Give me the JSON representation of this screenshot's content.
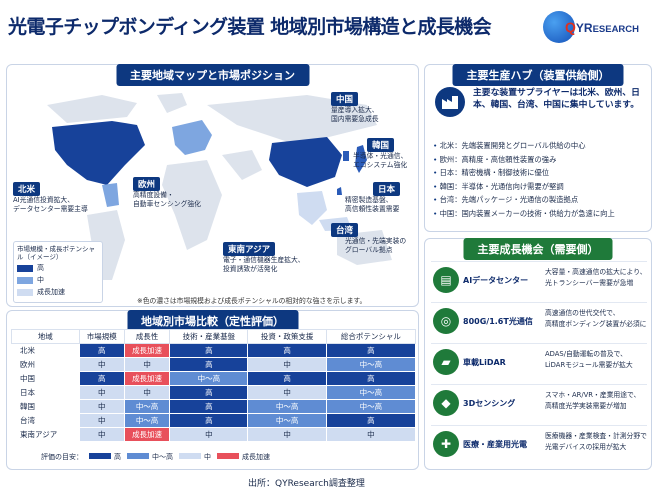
{
  "title": "光電子チップボンディング装置 地域別市場構造と成長機会",
  "logo": {
    "text_q": "Q",
    "text_rest": "YR",
    "text_small": "ESEARCH"
  },
  "map": {
    "header": "主要地域マップと市場ポジション",
    "regions": [
      {
        "name": "北米",
        "desc": [
          "AI光通信投資拡大、",
          "データセンター需要主導"
        ]
      },
      {
        "name": "欧州",
        "desc": [
          "高精度設備・",
          "自動車センシング強化"
        ]
      },
      {
        "name": "中国",
        "desc": [
          "量産導入拡大、",
          "国内需要急成長"
        ]
      },
      {
        "name": "韓国",
        "desc": [
          "半導体・光通信、",
          "エコシステム強化"
        ]
      },
      {
        "name": "日本",
        "desc": [
          "精密製造基盤、",
          "高信頼性装置需要"
        ]
      },
      {
        "name": "台湾",
        "desc": [
          "光通信・先端実装の",
          "グローバル拠点"
        ]
      },
      {
        "name": "東南アジア",
        "desc": [
          "電子・通信機器生産拡大、",
          "投資誘致が活発化"
        ]
      }
    ],
    "legend": {
      "title": "市場規模・成長ポテンシャル（イメージ）",
      "items": [
        "高",
        "中",
        "成長加速"
      ]
    },
    "note": "※色の濃さは市場規模および成長ポテンシャルの相対的な強さを示します。",
    "colors": {
      "high": "#17429a",
      "mid": "#7ea6e0",
      "low": "#cfdcf1",
      "grey": "#dde3ec"
    }
  },
  "table": {
    "header": "地域別市場比較（定性評価）",
    "columns": [
      "地域",
      "市場規模",
      "成長性",
      "技術・産業基盤",
      "投資・政策支援",
      "総合ポテンシャル"
    ],
    "rows": [
      {
        "cells": [
          "北米",
          "高",
          "成長加速",
          "高",
          "高",
          "高"
        ],
        "cls": [
          "rn",
          "hi",
          "gr",
          "hi",
          "hi",
          "hi"
        ]
      },
      {
        "cells": [
          "欧州",
          "中",
          "中",
          "高",
          "中",
          "中～高"
        ],
        "cls": [
          "rn",
          "md",
          "md",
          "hi",
          "md",
          "mh"
        ]
      },
      {
        "cells": [
          "中国",
          "高",
          "成長加速",
          "中～高",
          "高",
          "高"
        ],
        "cls": [
          "rn",
          "hi",
          "gr",
          "mh",
          "hi",
          "hi"
        ]
      },
      {
        "cells": [
          "日本",
          "中",
          "中",
          "高",
          "中",
          "中～高"
        ],
        "cls": [
          "rn",
          "md",
          "md",
          "hi",
          "md",
          "mh"
        ]
      },
      {
        "cells": [
          "韓国",
          "中",
          "中～高",
          "高",
          "中～高",
          "中～高"
        ],
        "cls": [
          "rn",
          "md",
          "mh",
          "hi",
          "mh",
          "mh"
        ]
      },
      {
        "cells": [
          "台湾",
          "中",
          "中～高",
          "高",
          "中～高",
          "高"
        ],
        "cls": [
          "rn",
          "md",
          "mh",
          "hi",
          "mh",
          "hi"
        ]
      },
      {
        "cells": [
          "東南アジア",
          "中",
          "成長加速",
          "中",
          "中",
          "中"
        ],
        "cls": [
          "rn",
          "md",
          "gr",
          "md",
          "md",
          "md"
        ]
      }
    ],
    "key_label": "評価の目安：",
    "key": [
      "高",
      "中～高",
      "中",
      "成長加速"
    ],
    "key_colors": [
      "#17429a",
      "#5f8cd3",
      "#cfdcf1",
      "#e8505b"
    ]
  },
  "hub": {
    "header": "主要生産ハブ（装置供給側）",
    "lead": "主要な装置サプライヤーは北米、欧州、日本、韓国、台湾、中国に集中しています。",
    "items": [
      "北米：先端装置開発とグローバル供給の中心",
      "欧州：高精度・高信頼性装置の強み",
      "日本：精密機構・制御技術に優位",
      "韓国：半導体・光通信向け需要が堅調",
      "台湾：先端パッケージ・光通信の製造拠点",
      "中国：国内装置メーカーの技術・供給力が急速に向上"
    ]
  },
  "opportunities": {
    "header": "主要成長機会（需要側）",
    "items": [
      {
        "name": "AIデータセンター",
        "desc": [
          "大容量・高速通信の拡大により、",
          "光トランシーバー需要が急増"
        ]
      },
      {
        "name": "800G/1.6T光通信",
        "desc": [
          "高速通信の世代交代で、",
          "高精度ボンディング装置が必須に"
        ]
      },
      {
        "name": "車載LiDAR",
        "desc": [
          "ADAS/自動運転の普及で、",
          "LiDARモジュール需要が拡大"
        ]
      },
      {
        "name": "3Dセンシング",
        "desc": [
          "スマホ・AR/VR・産業用途で、",
          "高精度光学実装需要が増加"
        ]
      },
      {
        "name": "医療・産業用光電",
        "desc": [
          "医療機器・産業検査・計測分野で",
          "光電デバイスの採用が拡大"
        ]
      }
    ]
  },
  "source": "出所：QYResearch調査整理"
}
